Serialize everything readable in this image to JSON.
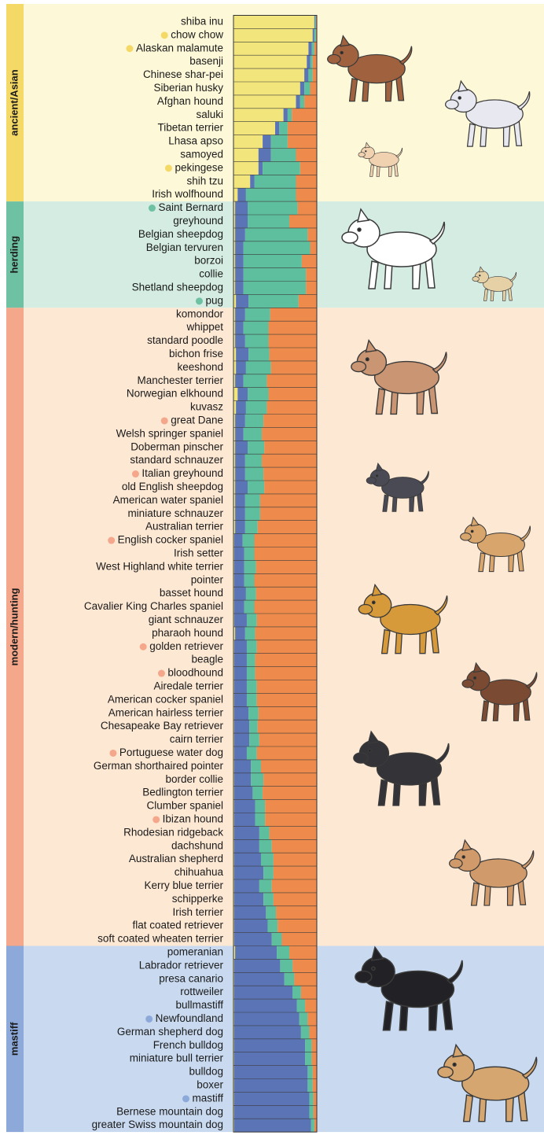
{
  "chart_data": {
    "type": "stacked-bar",
    "groups": [
      {
        "label": "ancient/Asian",
        "color": "#f5d966",
        "background": "#fdf8d8",
        "categories": [
          "shiba inu",
          "chow chow",
          "Alaskan malamute",
          "basenji",
          "Chinese shar-pei",
          "Siberian husky",
          "Afghan hound",
          "saluki",
          "Tibetan terrier",
          "Lhasa apso",
          "samoyed",
          "pekingese",
          "shih tzu",
          "Irish wolfhound"
        ],
        "marked": [
          false,
          true,
          true,
          false,
          false,
          false,
          false,
          false,
          false,
          false,
          false,
          true,
          false,
          false
        ]
      },
      {
        "label": "herding",
        "color": "#6fc1a3",
        "background": "#d4ece2",
        "categories": [
          "Saint Bernard",
          "greyhound",
          "Belgian sheepdog",
          "Belgian tervuren",
          "borzoi",
          "collie",
          "Shetland sheepdog",
          "pug"
        ],
        "marked": [
          true,
          false,
          false,
          false,
          false,
          false,
          false,
          true
        ]
      },
      {
        "label": "modern/hunting",
        "color": "#f4a78a",
        "background": "#fde8d4",
        "categories": [
          "komondor",
          "whippet",
          "standard poodle",
          "bichon frise",
          "keeshond",
          "Manchester terrier",
          "Norwegian elkhound",
          "kuvasz",
          "great Dane",
          "Welsh springer spaniel",
          "Doberman pinscher",
          "standard schnauzer",
          "Italian greyhound",
          "old English sheepdog",
          "American water spaniel",
          "miniature schnauzer",
          "Australian terrier",
          "English cocker spaniel",
          "Irish setter",
          "West Highland white terrier",
          "pointer",
          "basset hound",
          "Cavalier King Charles spaniel",
          "giant schnauzer",
          "pharaoh hound",
          "golden retriever",
          "beagle",
          "bloodhound",
          "Airedale terrier",
          "American cocker spaniel",
          "American hairless terrier",
          "Chesapeake Bay retriever",
          "cairn terrier",
          "Portuguese water dog",
          "German shorthaired pointer",
          "border collie",
          "Bedlington terrier",
          "Clumber spaniel",
          "Ibizan hound",
          "Rhodesian ridgeback",
          "dachshund",
          "Australian shepherd",
          "chihuahua",
          "Kerry blue terrier",
          "schipperke",
          "Irish terrier",
          "flat coated retriever",
          "soft coated wheaten terrier"
        ],
        "marked": [
          false,
          false,
          false,
          false,
          false,
          false,
          false,
          false,
          true,
          false,
          false,
          false,
          true,
          false,
          false,
          false,
          false,
          true,
          false,
          false,
          false,
          false,
          false,
          false,
          false,
          true,
          false,
          true,
          false,
          false,
          false,
          false,
          false,
          true,
          false,
          false,
          false,
          false,
          true,
          false,
          false,
          false,
          false,
          false,
          false,
          false,
          false,
          false
        ]
      },
      {
        "label": "mastiff",
        "color": "#8ca9da",
        "background": "#c9daf0",
        "categories": [
          "pomeranian",
          "Labrador retriever",
          "presa canario",
          "rottweiler",
          "bullmastiff",
          "Newfoundland",
          "German shepherd dog",
          "French bulldog",
          "miniature bull terrier",
          "bulldog",
          "boxer",
          "mastiff",
          "Bernese mountain dog",
          "greater Swiss mountain dog"
        ],
        "marked": [
          false,
          false,
          false,
          false,
          false,
          true,
          false,
          false,
          false,
          false,
          false,
          true,
          false,
          false
        ]
      }
    ],
    "series": [
      {
        "color": "#f2e57c",
        "values": [
          0.97,
          0.95,
          0.9,
          0.88,
          0.85,
          0.8,
          0.75,
          0.6,
          0.5,
          0.35,
          0.3,
          0.3,
          0.2,
          0.05,
          0.02,
          0.02,
          0.02,
          0.02,
          0.02,
          0.02,
          0.02,
          0.03,
          0.02,
          0.02,
          0.02,
          0.03,
          0.03,
          0.02,
          0.05,
          0.03,
          0.02,
          0.02,
          0.02,
          0.02,
          0.02,
          0.02,
          0.02,
          0.02,
          0.02,
          0.01,
          0.01,
          0.01,
          0.01,
          0.01,
          0.01,
          0.01,
          0.02,
          0.01,
          0.01,
          0.01,
          0.01,
          0.01,
          0.01,
          0.01,
          0.01,
          0.01,
          0.01,
          0.01,
          0.01,
          0.01,
          0.01,
          0.01,
          0.01,
          0.01,
          0.01,
          0.01,
          0.01,
          0.01,
          0.01,
          0.01,
          0.02,
          0.01,
          0.01,
          0.01,
          0.01,
          0.01,
          0.01,
          0.01,
          0.01,
          0.01,
          0.01,
          0.01,
          0.01,
          0.01
        ]
      },
      {
        "color": "#5a74b6",
        "values": [
          0.01,
          0.02,
          0.04,
          0.04,
          0.05,
          0.05,
          0.05,
          0.05,
          0.05,
          0.1,
          0.15,
          0.05,
          0.05,
          0.1,
          0.15,
          0.15,
          0.12,
          0.1,
          0.1,
          0.1,
          0.1,
          0.15,
          0.12,
          0.1,
          0.12,
          0.15,
          0.12,
          0.1,
          0.12,
          0.12,
          0.12,
          0.1,
          0.15,
          0.12,
          0.12,
          0.15,
          0.12,
          0.12,
          0.12,
          0.1,
          0.12,
          0.12,
          0.12,
          0.14,
          0.12,
          0.15,
          0.12,
          0.15,
          0.15,
          0.15,
          0.15,
          0.15,
          0.17,
          0.18,
          0.18,
          0.15,
          0.2,
          0.2,
          0.22,
          0.25,
          0.25,
          0.3,
          0.3,
          0.32,
          0.35,
          0.3,
          0.35,
          0.38,
          0.4,
          0.45,
          0.5,
          0.55,
          0.6,
          0.7,
          0.75,
          0.78,
          0.8,
          0.85,
          0.85,
          0.88,
          0.88,
          0.9,
          0.9,
          0.92
        ]
      },
      {
        "color": "#5dbf9e",
        "values": [
          0.01,
          0.02,
          0.03,
          0.03,
          0.05,
          0.07,
          0.05,
          0.05,
          0.1,
          0.2,
          0.3,
          0.45,
          0.5,
          0.6,
          0.6,
          0.5,
          0.75,
          0.8,
          0.7,
          0.75,
          0.75,
          0.6,
          0.3,
          0.3,
          0.28,
          0.25,
          0.3,
          0.28,
          0.25,
          0.25,
          0.22,
          0.22,
          0.2,
          0.2,
          0.22,
          0.2,
          0.18,
          0.18,
          0.15,
          0.14,
          0.12,
          0.14,
          0.12,
          0.12,
          0.12,
          0.12,
          0.12,
          0.12,
          0.1,
          0.1,
          0.12,
          0.12,
          0.12,
          0.1,
          0.12,
          0.12,
          0.12,
          0.15,
          0.12,
          0.12,
          0.12,
          0.12,
          0.15,
          0.15,
          0.12,
          0.15,
          0.12,
          0.12,
          0.12,
          0.12,
          0.15,
          0.15,
          0.12,
          0.1,
          0.1,
          0.1,
          0.1,
          0.08,
          0.08,
          0.06,
          0.06,
          0.05,
          0.05,
          0.04
        ]
      },
      {
        "color": "#ee8a4b",
        "values": [
          0.01,
          0.01,
          0.03,
          0.05,
          0.05,
          0.08,
          0.15,
          0.3,
          0.35,
          0.35,
          0.25,
          0.2,
          0.25,
          0.25,
          0.23,
          0.33,
          0.11,
          0.08,
          0.18,
          0.13,
          0.13,
          0.22,
          0.56,
          0.58,
          0.58,
          0.57,
          0.55,
          0.6,
          0.58,
          0.6,
          0.64,
          0.66,
          0.63,
          0.66,
          0.64,
          0.63,
          0.68,
          0.68,
          0.71,
          0.75,
          0.75,
          0.73,
          0.75,
          0.73,
          0.75,
          0.72,
          0.74,
          0.72,
          0.74,
          0.74,
          0.72,
          0.72,
          0.7,
          0.71,
          0.69,
          0.72,
          0.67,
          0.64,
          0.65,
          0.62,
          0.62,
          0.57,
          0.54,
          0.52,
          0.52,
          0.54,
          0.52,
          0.49,
          0.47,
          0.42,
          0.33,
          0.29,
          0.27,
          0.19,
          0.14,
          0.11,
          0.09,
          0.06,
          0.06,
          0.05,
          0.05,
          0.04,
          0.04,
          0.03
        ]
      }
    ]
  }
}
